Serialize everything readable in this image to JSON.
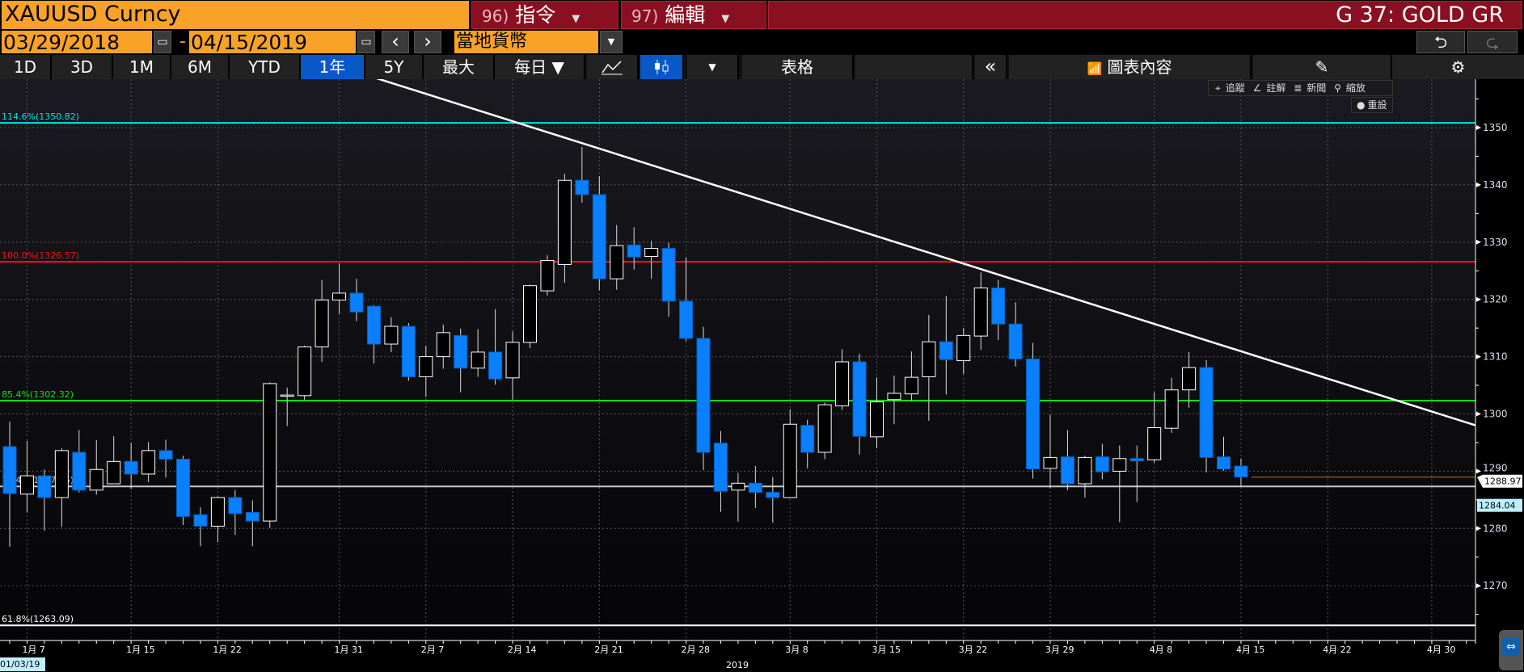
{
  "header": {
    "ticker": "XAUUSD Curncy",
    "cmd1": {
      "num": "96)",
      "label": "指令"
    },
    "cmd2": {
      "num": "97)",
      "label": "編輯"
    },
    "screen": "G 37: GOLD GR",
    "dropdown_icon": "▼"
  },
  "daterange": {
    "start": "03/29/2018",
    "separator": "-",
    "end": "04/15/2019",
    "prev": "‹",
    "next": "›",
    "currency": "當地貨幣",
    "undo_icon": "⮌",
    "redo_icon": "⮎"
  },
  "toolbar": {
    "periods": [
      "1D",
      "3D",
      "1M",
      "6M",
      "YTD",
      "1年",
      "5Y",
      "最大"
    ],
    "active_period": "1年",
    "frequency": "每日 ▼",
    "more": "▼",
    "table": "表格",
    "collapse": "«",
    "chart_content": "圖表內容"
  },
  "chart_tools": {
    "items": [
      "追蹤",
      "註解",
      "新聞",
      "縮放"
    ],
    "reset": "重設"
  },
  "colors": {
    "up_candle": "#ffffff",
    "down_candle": "#0a80ff",
    "fib_1146": "#00e5e5",
    "fib_1000": "#ff1010",
    "fib_854": "#10e010",
    "fib_764": "#c8c8c8",
    "fib_618": "#ffffff",
    "trendline": "#ffffff",
    "last_price_line": "#c07020",
    "title_bar": "#8a0f20",
    "accent_orange": "#f8a228",
    "active_button": "#0858c8"
  },
  "chart_data": {
    "type": "candlestick",
    "ylim": [
      1260.4,
      1359
    ],
    "y_ticks": [
      1270,
      1280,
      1290,
      1300,
      1310,
      1320,
      1330,
      1340,
      1350
    ],
    "y_tick_labels": [
      "1270",
      "1280",
      "1290",
      "1300",
      "1310",
      "1320",
      "1330",
      "1340",
      "1350"
    ],
    "x_ticks": [
      {
        "date": "2019-01-07",
        "label": "1月 7"
      },
      {
        "date": "2019-01-15",
        "label": "1月 15"
      },
      {
        "date": "2019-01-22",
        "label": "1月 22"
      },
      {
        "date": "2019-01-31",
        "label": "1月 31"
      },
      {
        "date": "2019-02-07",
        "label": "2月 7"
      },
      {
        "date": "2019-02-14",
        "label": "2月 14"
      },
      {
        "date": "2019-02-21",
        "label": "2月 21"
      },
      {
        "date": "2019-02-28",
        "label": "2月 28"
      },
      {
        "date": "2019-03-08",
        "label": "3月 8"
      },
      {
        "date": "2019-03-15",
        "label": "3月 15"
      },
      {
        "date": "2019-03-22",
        "label": "3月 22"
      },
      {
        "date": "2019-03-29",
        "label": "3月 29"
      },
      {
        "date": "2019-04-08",
        "label": "4月 8"
      },
      {
        "date": "2019-04-15",
        "label": "4月 15"
      },
      {
        "date": "2019-04-22",
        "label": "4月 22"
      },
      {
        "date": "2019-04-30",
        "label": "4月 30"
      }
    ],
    "x_start_label": "01/03/19",
    "year_label": "2019",
    "grid": true,
    "candles": [
      [
        "2019-01-04",
        1294.3,
        1298.7,
        1276.8,
        1286.1
      ],
      [
        "2019-01-07",
        1286.0,
        1295.3,
        1282.8,
        1289.2
      ],
      [
        "2019-01-08",
        1289.2,
        1290.3,
        1279.6,
        1285.4
      ],
      [
        "2019-01-09",
        1285.4,
        1294.0,
        1280.3,
        1293.6
      ],
      [
        "2019-01-10",
        1293.3,
        1297.2,
        1286.3,
        1286.7
      ],
      [
        "2019-01-11",
        1286.7,
        1295.4,
        1285.9,
        1290.3
      ],
      [
        "2019-01-14",
        1287.8,
        1296.1,
        1287.8,
        1291.7
      ],
      [
        "2019-01-15",
        1291.7,
        1295.0,
        1286.9,
        1289.5
      ],
      [
        "2019-01-16",
        1289.5,
        1295.1,
        1288.1,
        1293.6
      ],
      [
        "2019-01-17",
        1293.6,
        1295.5,
        1288.9,
        1292.1
      ],
      [
        "2019-01-18",
        1292.1,
        1292.7,
        1280.6,
        1282.1
      ],
      [
        "2019-01-21",
        1282.4,
        1283.7,
        1276.9,
        1280.4
      ],
      [
        "2019-01-22",
        1280.4,
        1285.6,
        1277.6,
        1285.4
      ],
      [
        "2019-01-23",
        1285.4,
        1286.7,
        1278.9,
        1282.6
      ],
      [
        "2019-01-24",
        1282.8,
        1284.9,
        1276.9,
        1281.3
      ],
      [
        "2019-01-25",
        1281.3,
        1305.5,
        1280.1,
        1305.3
      ],
      [
        "2019-01-28",
        1303.3,
        1304.6,
        1297.9,
        1303.3
      ],
      [
        "2019-01-29",
        1303.2,
        1311.9,
        1302.5,
        1311.7
      ],
      [
        "2019-01-30",
        1311.7,
        1323.4,
        1309.1,
        1319.9
      ],
      [
        "2019-01-31",
        1319.9,
        1326.3,
        1317.5,
        1321.1
      ],
      [
        "2019-02-01",
        1321.1,
        1323.6,
        1316.2,
        1317.8
      ],
      [
        "2019-02-04",
        1318.8,
        1319.0,
        1308.8,
        1312.2
      ],
      [
        "2019-02-05",
        1312.2,
        1316.9,
        1310.8,
        1315.3
      ],
      [
        "2019-02-06",
        1315.3,
        1315.9,
        1305.8,
        1306.5
      ],
      [
        "2019-02-07",
        1306.5,
        1311.9,
        1303.0,
        1310.0
      ],
      [
        "2019-02-08",
        1310.0,
        1315.6,
        1307.9,
        1314.2
      ],
      [
        "2019-02-11",
        1313.7,
        1314.9,
        1303.8,
        1308.0
      ],
      [
        "2019-02-12",
        1308.0,
        1314.8,
        1306.5,
        1310.8
      ],
      [
        "2019-02-13",
        1310.8,
        1318.3,
        1305.1,
        1306.1
      ],
      [
        "2019-02-14",
        1306.3,
        1314.4,
        1302.5,
        1312.5
      ],
      [
        "2019-02-15",
        1312.5,
        1322.6,
        1311.5,
        1322.4
      ],
      [
        "2019-02-18",
        1321.5,
        1327.7,
        1320.7,
        1326.8
      ],
      [
        "2019-02-19",
        1326.1,
        1341.9,
        1322.9,
        1340.8
      ],
      [
        "2019-02-20",
        1340.8,
        1346.6,
        1336.9,
        1338.3
      ],
      [
        "2019-02-21",
        1338.3,
        1341.5,
        1321.6,
        1323.6
      ],
      [
        "2019-02-22",
        1323.6,
        1333.0,
        1321.7,
        1329.4
      ],
      [
        "2019-02-25",
        1329.5,
        1332.6,
        1325.2,
        1327.4
      ],
      [
        "2019-02-26",
        1327.5,
        1330.2,
        1323.6,
        1328.9
      ],
      [
        "2019-02-27",
        1328.9,
        1329.9,
        1317.0,
        1319.7
      ],
      [
        "2019-02-28",
        1319.7,
        1327.3,
        1312.7,
        1313.2
      ],
      [
        "2019-03-01",
        1313.2,
        1315.2,
        1290.2,
        1293.3
      ],
      [
        "2019-03-04",
        1294.9,
        1297.0,
        1282.9,
        1286.5
      ],
      [
        "2019-03-05",
        1286.7,
        1289.7,
        1281.2,
        1287.9
      ],
      [
        "2019-03-06",
        1287.9,
        1290.9,
        1283.6,
        1286.3
      ],
      [
        "2019-03-07",
        1286.3,
        1289.0,
        1281.0,
        1285.4
      ],
      [
        "2019-03-08",
        1285.4,
        1300.8,
        1285.4,
        1298.2
      ],
      [
        "2019-03-11",
        1298.0,
        1299.0,
        1290.5,
        1293.3
      ],
      [
        "2019-03-12",
        1293.3,
        1302.0,
        1292.1,
        1301.6
      ],
      [
        "2019-03-13",
        1301.4,
        1311.3,
        1300.7,
        1309.1
      ],
      [
        "2019-03-14",
        1309.1,
        1310.5,
        1292.9,
        1296.1
      ],
      [
        "2019-03-15",
        1296.0,
        1306.4,
        1294.0,
        1302.1
      ],
      [
        "2019-03-18",
        1302.5,
        1306.7,
        1298.2,
        1303.6
      ],
      [
        "2019-03-19",
        1303.5,
        1310.9,
        1302.2,
        1306.4
      ],
      [
        "2019-03-20",
        1306.5,
        1317.3,
        1298.8,
        1312.6
      ],
      [
        "2019-03-21",
        1312.6,
        1320.6,
        1303.4,
        1309.5
      ],
      [
        "2019-03-22",
        1309.3,
        1315.0,
        1307.0,
        1313.7
      ],
      [
        "2019-03-25",
        1313.6,
        1324.7,
        1311.2,
        1322.0
      ],
      [
        "2019-03-26",
        1322.0,
        1323.4,
        1312.9,
        1315.7
      ],
      [
        "2019-03-27",
        1315.7,
        1319.5,
        1308.3,
        1309.6
      ],
      [
        "2019-03-28",
        1309.6,
        1312.4,
        1288.7,
        1290.4
      ],
      [
        "2019-03-29",
        1290.5,
        1299.9,
        1287.0,
        1292.4
      ],
      [
        "2019-04-01",
        1292.5,
        1297.2,
        1286.7,
        1287.8
      ],
      [
        "2019-04-02",
        1287.8,
        1292.7,
        1285.4,
        1292.4
      ],
      [
        "2019-04-03",
        1292.5,
        1294.8,
        1288.6,
        1289.9
      ],
      [
        "2019-04-04",
        1290.0,
        1294.5,
        1281.1,
        1292.2
      ],
      [
        "2019-04-05",
        1292.2,
        1294.5,
        1284.6,
        1291.8
      ],
      [
        "2019-04-08",
        1292.0,
        1303.8,
        1291.5,
        1297.6
      ],
      [
        "2019-04-09",
        1297.5,
        1306.3,
        1296.7,
        1304.2
      ],
      [
        "2019-04-10",
        1304.2,
        1310.8,
        1301.1,
        1308.1
      ],
      [
        "2019-04-11",
        1308.1,
        1309.4,
        1289.8,
        1292.4
      ],
      [
        "2019-04-12",
        1292.5,
        1296.0,
        1290.1,
        1290.4
      ],
      [
        "2019-04-15",
        1290.9,
        1292.2,
        1287.3,
        1289.0
      ]
    ],
    "fib_levels": [
      {
        "label": "114.6%(1350.82)",
        "price": 1350.82,
        "color_key": "fib_1146"
      },
      {
        "label": "100.0%(1326.57)",
        "price": 1326.57,
        "color_key": "fib_1000"
      },
      {
        "label": "85.4%(1302.32)",
        "price": 1302.32,
        "color_key": "fib_854"
      },
      {
        "label": "76.4%(1287.35)",
        "price": 1287.35,
        "color_key": "fib_764"
      },
      {
        "label": "61.8%(1263.09)",
        "price": 1263.09,
        "color_key": "fib_618"
      }
    ],
    "trendline": [
      {
        "date": "2019-02-01",
        "price": 1359.1
      },
      {
        "date": "2019-04-12",
        "price": 1311.9
      }
    ],
    "last_price": "1288.97",
    "last_price_value": 1288.97,
    "marker_price": "1284.04",
    "marker_price_value": 1284.04
  }
}
